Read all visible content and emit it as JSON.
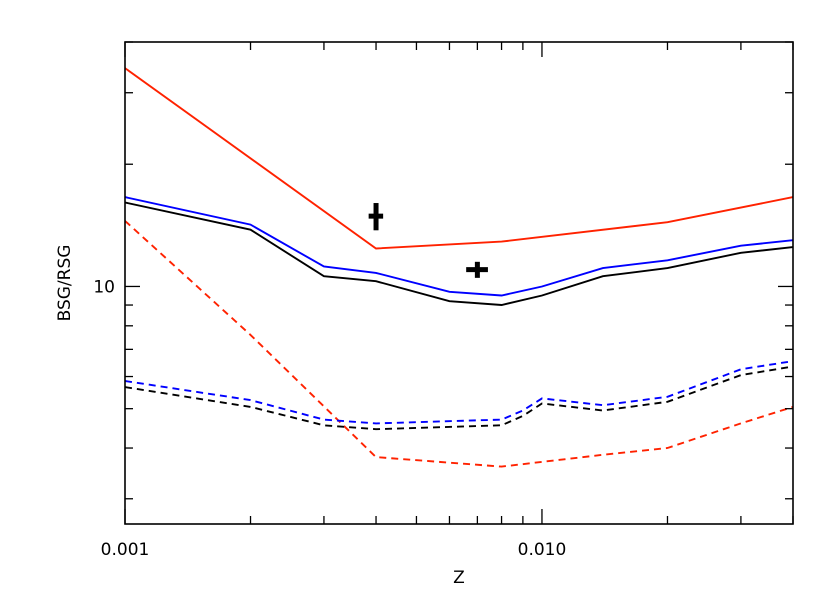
{
  "chart_data": {
    "type": "line",
    "title": "",
    "xlabel": "Z",
    "ylabel": "BSG/RSG",
    "x_scale": "log",
    "y_scale": "log",
    "xlim": [
      0.001,
      0.04
    ],
    "ylim": [
      2.6,
      40
    ],
    "x_ticks": [
      {
        "value": 0.001,
        "label": "0.001"
      },
      {
        "value": 0.01,
        "label": "0.010"
      }
    ],
    "y_ticks": [
      {
        "value": 10,
        "label": "10"
      }
    ],
    "grid": false,
    "legend": "none",
    "series": [
      {
        "color": "#ff2200",
        "dash": "solid",
        "x": [
          0.001,
          0.004,
          0.008,
          0.02,
          0.04
        ],
        "y": [
          34.5,
          12.4,
          12.9,
          14.4,
          16.6
        ]
      },
      {
        "color": "#0000ff",
        "dash": "solid",
        "x": [
          0.001,
          0.002,
          0.003,
          0.004,
          0.006,
          0.008,
          0.01,
          0.014,
          0.02,
          0.03,
          0.04
        ],
        "y": [
          16.6,
          14.2,
          11.2,
          10.8,
          9.7,
          9.5,
          10.0,
          11.1,
          11.6,
          12.6,
          13.0
        ]
      },
      {
        "color": "#000000",
        "dash": "solid",
        "x": [
          0.001,
          0.002,
          0.003,
          0.004,
          0.006,
          0.008,
          0.01,
          0.014,
          0.02,
          0.03,
          0.04
        ],
        "y": [
          16.1,
          13.8,
          10.6,
          10.3,
          9.2,
          9.0,
          9.5,
          10.6,
          11.1,
          12.1,
          12.5
        ]
      },
      {
        "color": "#ff2200",
        "dash": "dashed",
        "x": [
          0.001,
          0.002,
          0.004,
          0.008,
          0.014,
          0.02,
          0.03,
          0.04
        ],
        "y": [
          14.5,
          7.6,
          3.8,
          3.6,
          3.85,
          4.0,
          4.6,
          5.05
        ]
      },
      {
        "color": "#0000ff",
        "dash": "dashed",
        "x": [
          0.001,
          0.002,
          0.003,
          0.004,
          0.008,
          0.009,
          0.01,
          0.014,
          0.02,
          0.03,
          0.04
        ],
        "y": [
          5.85,
          5.25,
          4.7,
          4.6,
          4.7,
          4.95,
          5.3,
          5.1,
          5.35,
          6.25,
          6.55
        ]
      },
      {
        "color": "#000000",
        "dash": "dashed",
        "x": [
          0.001,
          0.002,
          0.003,
          0.004,
          0.008,
          0.009,
          0.01,
          0.014,
          0.02,
          0.03,
          0.04
        ],
        "y": [
          5.65,
          5.05,
          4.55,
          4.45,
          4.55,
          4.8,
          5.15,
          4.95,
          5.2,
          6.05,
          6.35
        ]
      }
    ],
    "points": [
      {
        "x": 0.004,
        "y": 14.9,
        "y_err": 1.15,
        "x_err": 0.00016,
        "color": "#000000"
      },
      {
        "x": 0.007,
        "y": 11.0,
        "y_err": 0.5,
        "x_err": 0.00042,
        "color": "#000000"
      }
    ]
  }
}
